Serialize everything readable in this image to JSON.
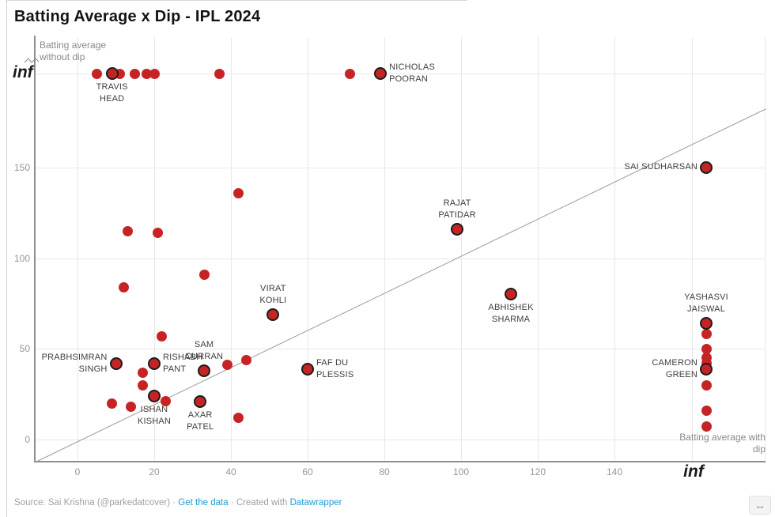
{
  "title": "Batting Average x Dip - IPL 2024",
  "axes": {
    "y_title": "Batting average\nwithout dip",
    "x_title": "Batting average with\ndip",
    "y_inf_label": "inf",
    "x_inf_label": "inf",
    "x_ticks": [
      0,
      20,
      40,
      60,
      80,
      100,
      120,
      140
    ],
    "y_ticks": [
      0,
      50,
      100,
      150
    ]
  },
  "chart_data": {
    "type": "scatter",
    "title": "Batting Average x Dip - IPL 2024",
    "xlabel": "Batting average with dip",
    "ylabel": "Batting average without dip",
    "xlim": [
      0,
      "inf"
    ],
    "ylim": [
      0,
      "inf"
    ],
    "grid": true,
    "reference_line": "y = x diagonal",
    "points": [
      {
        "x": 5,
        "y": "inf"
      },
      {
        "x": 9,
        "y": "inf",
        "label": "TRAVIS\nHEAD",
        "label_pos": "below",
        "highlighted": true
      },
      {
        "x": 11,
        "y": "inf"
      },
      {
        "x": 15,
        "y": "inf"
      },
      {
        "x": 18,
        "y": "inf"
      },
      {
        "x": 20,
        "y": "inf"
      },
      {
        "x": 37,
        "y": "inf"
      },
      {
        "x": 71,
        "y": "inf"
      },
      {
        "x": 79,
        "y": "inf",
        "label": "NICHOLAS\nPOORAN",
        "label_pos": "right",
        "highlighted": true
      },
      {
        "x": "inf",
        "y": 150,
        "label": "SAI SUDHARSAN",
        "label_pos": "left",
        "highlighted": true
      },
      {
        "x": "inf",
        "y": 64,
        "label": "YASHASVI\nJAISWAL",
        "label_pos": "above",
        "highlighted": true
      },
      {
        "x": "inf",
        "y": 58
      },
      {
        "x": "inf",
        "y": 50
      },
      {
        "x": "inf",
        "y": 45
      },
      {
        "x": "inf",
        "y": 42
      },
      {
        "x": "inf",
        "y": 39,
        "label": "CAMERON\nGREEN",
        "label_pos": "left",
        "highlighted": true
      },
      {
        "x": "inf",
        "y": 30
      },
      {
        "x": "inf",
        "y": 16
      },
      {
        "x": "inf",
        "y": 7
      },
      {
        "x": 42,
        "y": 136
      },
      {
        "x": 13,
        "y": 115
      },
      {
        "x": 21,
        "y": 114
      },
      {
        "x": 33,
        "y": 91
      },
      {
        "x": 12,
        "y": 84
      },
      {
        "x": 51,
        "y": 69,
        "label": "VIRAT\nKOHLI",
        "label_pos": "above",
        "highlighted": true
      },
      {
        "x": 99,
        "y": 116,
        "label": "RAJAT\nPATIDAR",
        "label_pos": "above",
        "highlighted": true
      },
      {
        "x": 113,
        "y": 80,
        "label": "ABHISHEK\nSHARMA",
        "label_pos": "below",
        "highlighted": true
      },
      {
        "x": 60,
        "y": 39,
        "label": "FAF DU\nPLESSIS",
        "label_pos": "right",
        "highlighted": true
      },
      {
        "x": 44,
        "y": 44
      },
      {
        "x": 22,
        "y": 57
      },
      {
        "x": 10,
        "y": 42,
        "label": "PRABHSIMRAN\nSINGH",
        "label_pos": "left",
        "highlighted": true
      },
      {
        "x": 20,
        "y": 42,
        "label": "RISHABH\nPANT",
        "label_pos": "right",
        "highlighted": true
      },
      {
        "x": 17,
        "y": 37
      },
      {
        "x": 17,
        "y": 30
      },
      {
        "x": 20,
        "y": 24,
        "label": "ISHAN\nKISHAN",
        "label_pos": "below",
        "highlighted": true
      },
      {
        "x": 23,
        "y": 21
      },
      {
        "x": 9,
        "y": 20
      },
      {
        "x": 14,
        "y": 18
      },
      {
        "x": 33,
        "y": 38,
        "label": "SAM\nCURRAN",
        "label_pos": "above",
        "highlighted": true
      },
      {
        "x": 32,
        "y": 21,
        "label": "AXAR\nPATEL",
        "label_pos": "below",
        "highlighted": true
      },
      {
        "x": 42,
        "y": 12
      },
      {
        "x": 39,
        "y": 41
      }
    ]
  },
  "footer": {
    "source_text": "Source: Sai Krishna (@parkedatcover)",
    "sep": "·",
    "get_data_link": "Get the data",
    "created_prefix": "Created with",
    "tool_link": "Datawrapper"
  },
  "misc": {
    "resize_glyph": "↔"
  },
  "colors": {
    "point": "#c62424",
    "point_ring": "#1c1c1c",
    "link": "#1d9bd1",
    "grid": "#e7e7e7",
    "axis": "#8f8f8f"
  }
}
